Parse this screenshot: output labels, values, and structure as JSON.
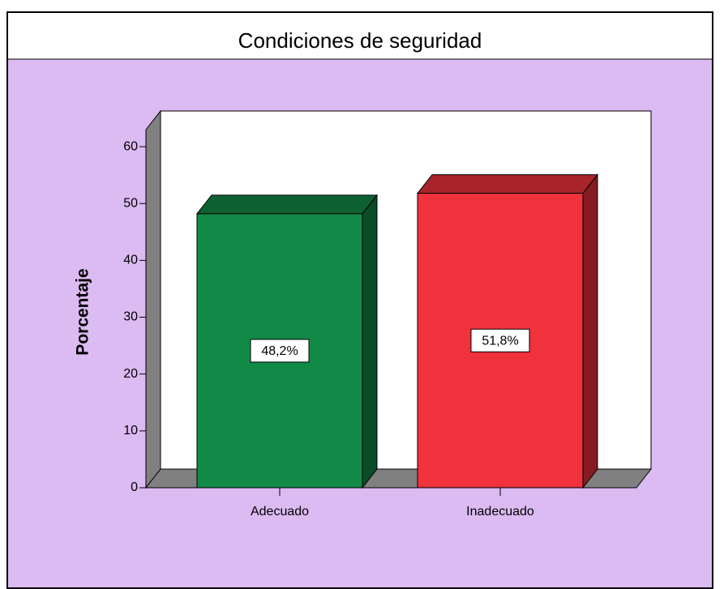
{
  "chart_data": {
    "type": "bar",
    "title": "Condiciones de seguridad",
    "ylabel": "Porcentaje",
    "categories": [
      "Adecuado",
      "Inadecuado"
    ],
    "values": [
      48.2,
      51.8
    ],
    "value_labels": [
      "48,2%",
      "51,8%"
    ],
    "colors": [
      "#128a47",
      "#f0323c"
    ],
    "ylim": [
      0,
      63
    ],
    "yticks": [
      0,
      10,
      20,
      30,
      40,
      50,
      60
    ]
  }
}
